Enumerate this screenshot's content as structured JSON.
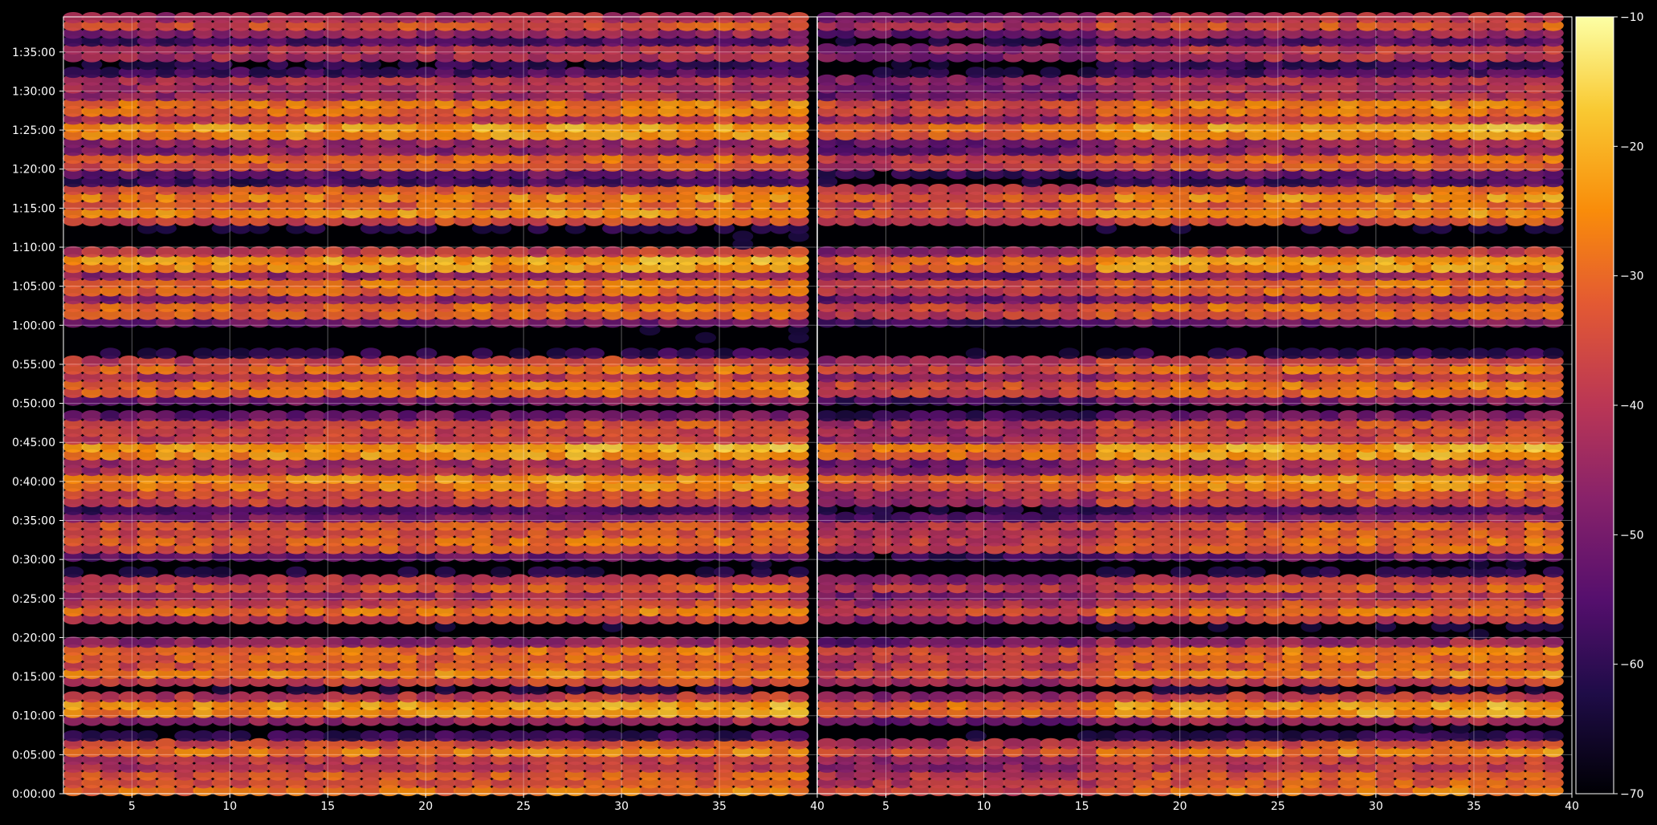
{
  "chart_data": {
    "type": "heatmap",
    "title": "",
    "xlabel": "",
    "ylabel": "",
    "grid": true,
    "colormap": "inferno",
    "colorbar": {
      "range": [
        -70,
        -10
      ],
      "ticks": [
        "-10",
        "-20",
        "-30",
        "-40",
        "-50",
        "-60",
        "-70"
      ]
    },
    "y_ticks": [
      "0:00:00",
      "0:05:00",
      "0:10:00",
      "0:15:00",
      "0:20:00",
      "0:25:00",
      "0:30:00",
      "0:35:00",
      "0:40:00",
      "0:45:00",
      "0:50:00",
      "0:55:00",
      "1:00:00",
      "1:05:00",
      "1:10:00",
      "1:15:00",
      "1:20:00",
      "1:25:00",
      "1:30:00",
      "1:35:00"
    ],
    "y_range_minutes": [
      0,
      99.5
    ],
    "panels": [
      {
        "x_range": [
          1.5,
          40
        ],
        "x_ticks": [
          "5",
          "10",
          "15",
          "20",
          "25",
          "30",
          "35",
          "40"
        ]
      },
      {
        "x_range": [
          1.5,
          40
        ],
        "x_ticks": [
          "5",
          "10",
          "15",
          "20",
          "25",
          "30",
          "35",
          "40"
        ]
      }
    ],
    "bright_bands": [
      {
        "time": "0:00:40",
        "value": -28
      },
      {
        "time": "0:02:30",
        "value": -32
      },
      {
        "time": "0:05:30",
        "value": -27
      },
      {
        "time": "0:11:00",
        "value": -21
      },
      {
        "time": "0:15:30",
        "value": -26
      },
      {
        "time": "0:18:00",
        "value": -27
      },
      {
        "time": "0:23:30",
        "value": -28
      },
      {
        "time": "0:26:30",
        "value": -32
      },
      {
        "time": "0:32:00",
        "value": -29
      },
      {
        "time": "0:34:00",
        "value": -31
      },
      {
        "time": "0:38:00",
        "value": -33
      },
      {
        "time": "0:40:00",
        "value": -23
      },
      {
        "time": "0:44:00",
        "value": -20
      },
      {
        "time": "0:47:00",
        "value": -33
      },
      {
        "time": "0:52:00",
        "value": -26
      },
      {
        "time": "0:54:30",
        "value": -29
      },
      {
        "time": "1:02:00",
        "value": -28
      },
      {
        "time": "1:05:00",
        "value": -27
      },
      {
        "time": "1:08:00",
        "value": -21
      },
      {
        "time": "1:14:30",
        "value": -24
      },
      {
        "time": "1:16:30",
        "value": -25
      },
      {
        "time": "1:21:00",
        "value": -29
      },
      {
        "time": "1:25:00",
        "value": -21
      },
      {
        "time": "1:28:00",
        "value": -26
      },
      {
        "time": "1:31:00",
        "value": -39
      },
      {
        "time": "1:35:00",
        "value": -38
      },
      {
        "time": "1:38:30",
        "value": -34
      }
    ]
  }
}
